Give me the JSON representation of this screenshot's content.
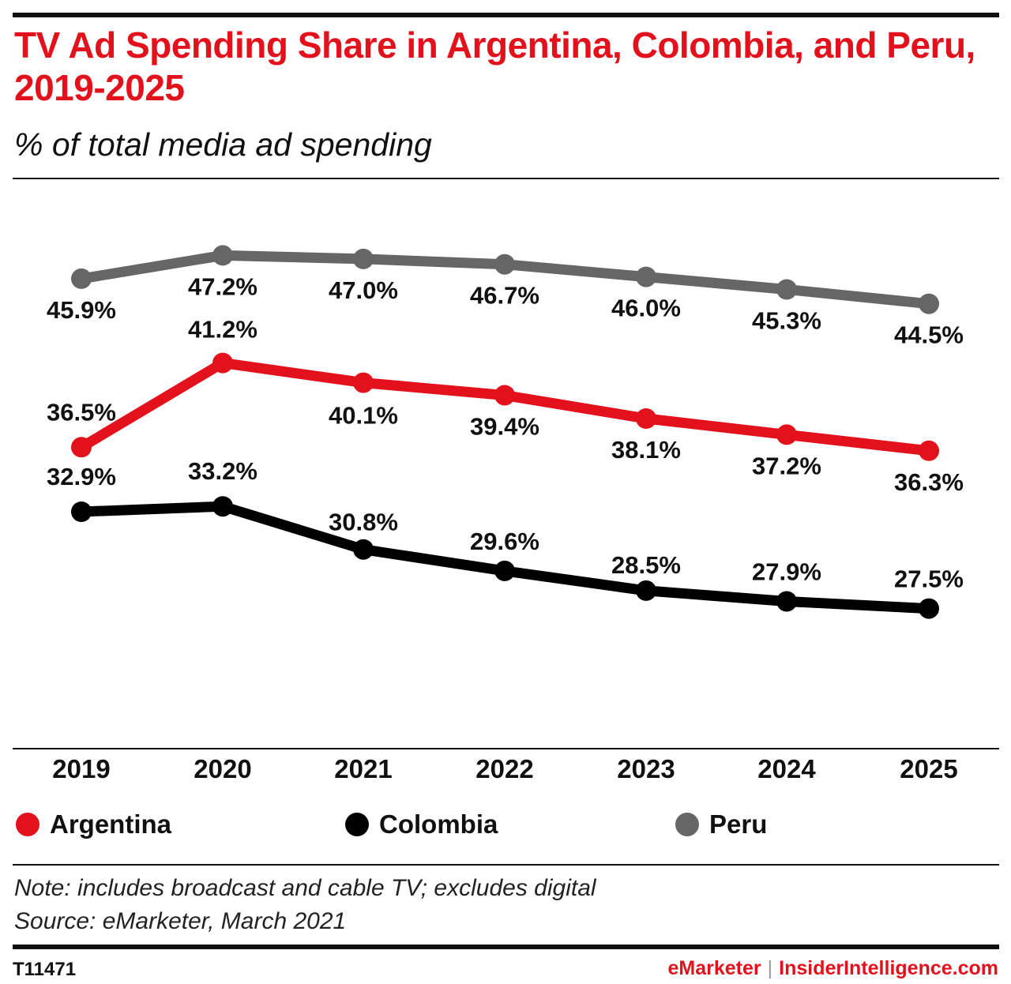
{
  "title": "TV Ad Spending Share in Argentina, Colombia, and Peru, 2019-2025",
  "subtitle": "% of total media ad spending",
  "note": "Note: includes broadcast and cable TV; excludes digital",
  "source": "Source: eMarketer, March 2021",
  "chart_id": "T11471",
  "brand_left": "eMarketer",
  "brand_separator": "|",
  "brand_right": "InsiderIntelligence.com",
  "colors": {
    "argentina": "#e3111b",
    "colombia": "#000000",
    "peru": "#666666",
    "title": "#e3111b"
  },
  "chart_data": {
    "type": "line",
    "title": "TV Ad Spending Share in Argentina, Colombia, and Peru, 2019-2025",
    "subtitle": "% of total media ad spending",
    "x": [
      "2019",
      "2020",
      "2021",
      "2022",
      "2023",
      "2024",
      "2025"
    ],
    "series": [
      {
        "name": "Argentina",
        "color": "#e3111b",
        "values": [
          36.5,
          41.2,
          40.1,
          39.4,
          38.1,
          37.2,
          36.3
        ]
      },
      {
        "name": "Colombia",
        "color": "#000000",
        "values": [
          32.9,
          33.2,
          30.8,
          29.6,
          28.5,
          27.9,
          27.5
        ]
      },
      {
        "name": "Peru",
        "color": "#666666",
        "values": [
          45.9,
          47.2,
          47.0,
          46.7,
          46.0,
          45.3,
          44.5
        ]
      }
    ],
    "value_suffix": "%",
    "ylim": [
      20,
      50
    ],
    "grid": false,
    "legend_position": "bottom"
  }
}
